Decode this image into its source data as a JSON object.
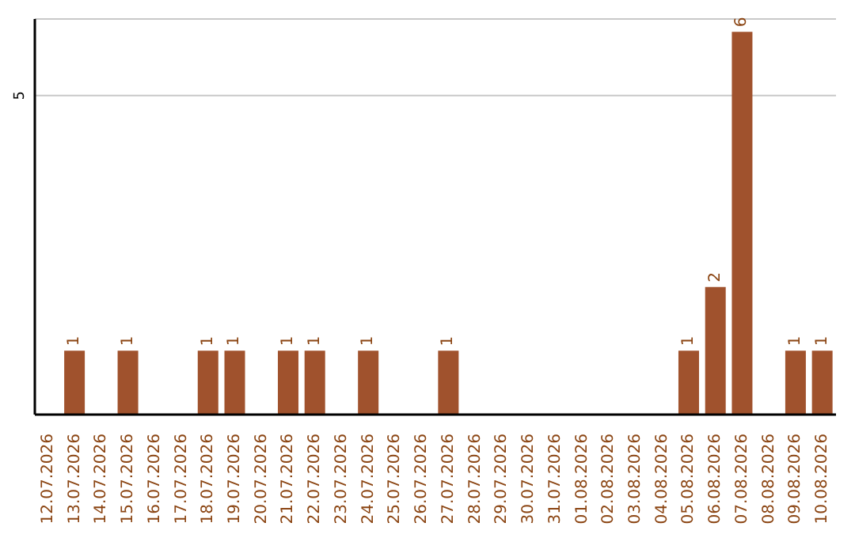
{
  "chart_data": {
    "type": "bar",
    "categories": [
      "12.07.2026",
      "13.07.2026",
      "14.07.2026",
      "15.07.2026",
      "16.07.2026",
      "17.07.2026",
      "18.07.2026",
      "19.07.2026",
      "20.07.2026",
      "21.07.2026",
      "22.07.2026",
      "23.07.2026",
      "24.07.2026",
      "25.07.2026",
      "26.07.2026",
      "27.07.2026",
      "28.07.2026",
      "29.07.2026",
      "30.07.2026",
      "31.07.2026",
      "01.08.2026",
      "02.08.2026",
      "03.08.2026",
      "04.08.2026",
      "05.08.2026",
      "06.08.2026",
      "07.08.2026",
      "08.08.2026",
      "09.08.2026",
      "10.08.2026"
    ],
    "values": [
      0,
      1,
      0,
      1,
      0,
      0,
      1,
      1,
      0,
      1,
      1,
      0,
      1,
      0,
      0,
      1,
      0,
      0,
      0,
      0,
      0,
      0,
      0,
      0,
      1,
      2,
      6,
      0,
      1,
      1
    ],
    "value_labels": [
      null,
      "1",
      null,
      "1",
      null,
      null,
      "1",
      "1",
      null,
      "1",
      "1",
      null,
      "1",
      null,
      null,
      "1",
      null,
      null,
      null,
      null,
      null,
      null,
      null,
      null,
      "1",
      "2",
      "6",
      null,
      "1",
      "1"
    ],
    "color": "#a0522d",
    "ylim": [
      0,
      6.2
    ],
    "yticks": [
      5
    ],
    "grid": "y"
  }
}
